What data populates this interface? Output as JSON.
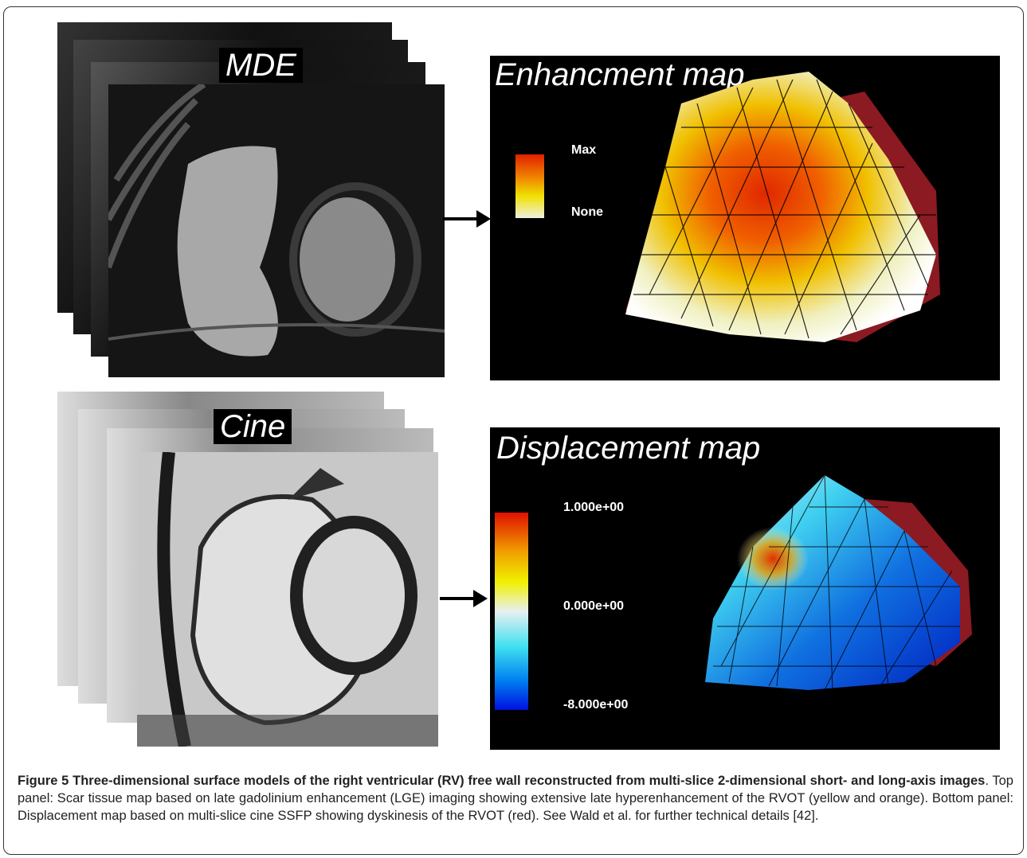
{
  "top_panel": {
    "stack_label": "MDE",
    "map_title": "Enhancment map",
    "legend": {
      "max_label": "Max",
      "min_label": "None",
      "colors": [
        "#e02000",
        "#f08000",
        "#f0e000",
        "#f0f0e0"
      ]
    }
  },
  "bottom_panel": {
    "stack_label": "Cine",
    "map_title": "Displacement map",
    "legend": {
      "max_label": "1.000e+00",
      "mid_label": "0.000e+00",
      "min_label": "-8.000e+00",
      "colors": [
        "#e01000",
        "#f0a000",
        "#f0f000",
        "#e8f0f0",
        "#40e0f0",
        "#0080f0",
        "#0010e0"
      ]
    }
  },
  "caption": {
    "figure_label": "Figure 5",
    "title": "Three-dimensional surface models of the right ventricular (RV) free wall reconstructed from multi-slice 2-dimensional short- and long-axis images",
    "body": ". Top panel: Scar tissue map based on late gadolinium enhancement (LGE) imaging showing extensive late hyperenhancement of the RVOT (yellow and orange). Bottom panel: Displacement map based on multi-slice cine SSFP showing dyskinesis of the RVOT (red). See Wald et al. for further technical details [42]."
  },
  "colors": {
    "mesh_red": "#8b1a22",
    "enhance_hot": "#e02800",
    "displace_blue": "#1060e0"
  }
}
